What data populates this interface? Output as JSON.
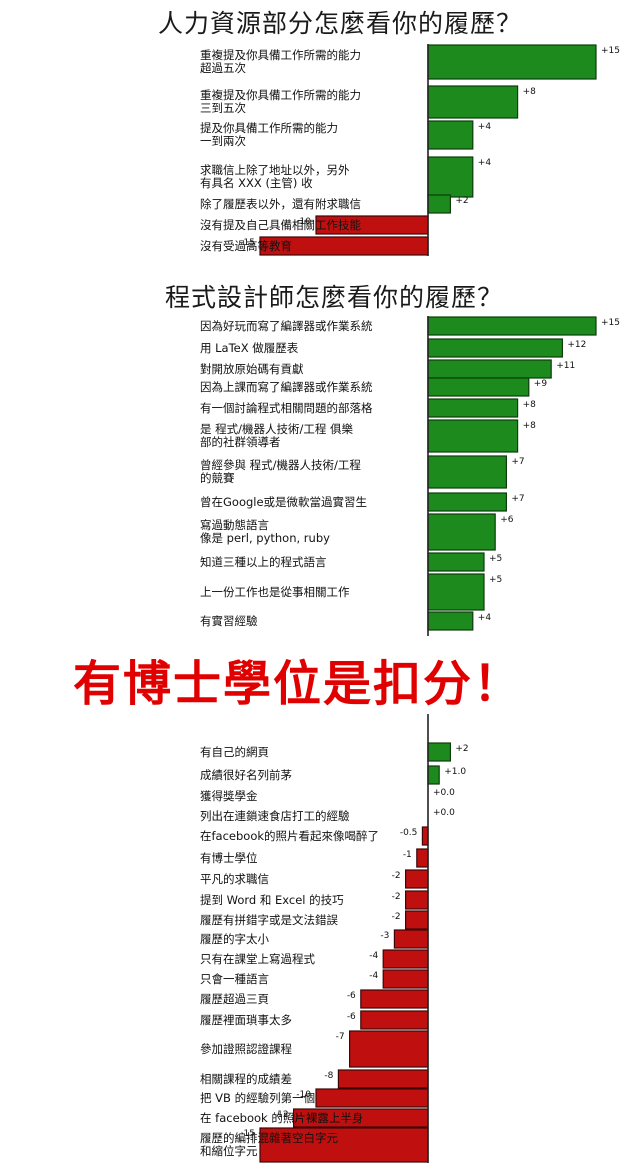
{
  "overlay_text": "有博士學位是扣分！",
  "colors": {
    "positive": "#1c8a1c",
    "negative": "#c00f0f",
    "overlay": "#e00000"
  },
  "chart_data": [
    {
      "type": "bar",
      "orientation": "horizontal",
      "title": "人力資源部分怎麼看你的履歷？",
      "items": [
        {
          "label": [
            "重複提及你具備工作所需的能力",
            "超過五次"
          ],
          "value": 15,
          "value_label": "+15"
        },
        {
          "label": [
            "重複提及你具備工作所需的能力",
            "三到五次"
          ],
          "value": 8,
          "value_label": "+8"
        },
        {
          "label": [
            "提及你具備工作所需的能力",
            "一到兩次"
          ],
          "value": 4,
          "value_label": "+4"
        },
        {
          "label": [
            "求職信上除了地址以外，另外",
            "有具名 XXX (主管) 收"
          ],
          "value": 4,
          "value_label": "+4"
        },
        {
          "label": [
            "除了履歷表以外，還有附求職信"
          ],
          "value": 2,
          "value_label": "+2"
        },
        {
          "label": [
            "沒有提及自己具備相關工作技能"
          ],
          "value": -10,
          "value_label": "-10"
        },
        {
          "label": [
            "沒有受過高等教育"
          ],
          "value": -15,
          "value_label": "-15"
        }
      ]
    },
    {
      "type": "bar",
      "orientation": "horizontal",
      "title": "程式設計師怎麼看你的履歷？",
      "items": [
        {
          "label": [
            "因為好玩而寫了編譯器或作業系統"
          ],
          "value": 15,
          "value_label": "+15"
        },
        {
          "label": [
            "用 LaTeX 做履歷表"
          ],
          "value": 12,
          "value_label": "+12"
        },
        {
          "label": [
            "對開放原始碼有貢獻"
          ],
          "value": 11,
          "value_label": "+11"
        },
        {
          "label": [
            "因為上課而寫了編譯器或作業系統"
          ],
          "value": 9,
          "value_label": "+9"
        },
        {
          "label": [
            "有一個討論程式相關問題的部落格"
          ],
          "value": 8,
          "value_label": "+8"
        },
        {
          "label": [
            "是 程式/機器人技術/工程 俱樂",
            "部的社群領導者"
          ],
          "value": 8,
          "value_label": "+8"
        },
        {
          "label": [
            "曾經參與 程式/機器人技術/工程",
            "的競賽"
          ],
          "value": 7,
          "value_label": "+7"
        },
        {
          "label": [
            "曾在Google或是微軟當過實習生"
          ],
          "value": 7,
          "value_label": "+7"
        },
        {
          "label": [
            "寫過動態語言",
            "像是 perl, python, ruby"
          ],
          "value": 6,
          "value_label": "+6"
        },
        {
          "label": [
            "知道三種以上的程式語言"
          ],
          "value": 5,
          "value_label": "+5"
        },
        {
          "label": [
            "上一份工作也是從事相關工作"
          ],
          "value": 5,
          "value_label": "+5"
        },
        {
          "label": [
            "有實習經驗"
          ],
          "value": 4,
          "value_label": "+4"
        },
        {
          "label": [
            "有自己的網頁"
          ],
          "value": 2,
          "value_label": "+2"
        },
        {
          "label": [
            "成績很好名列前茅"
          ],
          "value": 1.0,
          "value_label": "+1.0"
        },
        {
          "label": [
            "獲得獎學金"
          ],
          "value": 0.0,
          "value_label": "+0.0"
        },
        {
          "label": [
            "列出在連鎖速食店打工的經驗"
          ],
          "value": 0.0,
          "value_label": "+0.0"
        },
        {
          "label": [
            "在facebook的照片看起來像喝醉了"
          ],
          "value": -0.5,
          "value_label": "-0.5"
        },
        {
          "label": [
            "有博士學位"
          ],
          "value": -1,
          "value_label": "-1"
        },
        {
          "label": [
            "平凡的求職信"
          ],
          "value": -2,
          "value_label": "-2"
        },
        {
          "label": [
            "提到 Word 和 Excel 的技巧"
          ],
          "value": -2,
          "value_label": "-2"
        },
        {
          "label": [
            "履歷有拼錯字或是文法錯誤"
          ],
          "value": -2,
          "value_label": "-2"
        },
        {
          "label": [
            "履歷的字太小"
          ],
          "value": -3,
          "value_label": "-3"
        },
        {
          "label": [
            "只有在課堂上寫過程式"
          ],
          "value": -4,
          "value_label": "-4"
        },
        {
          "label": [
            "只會一種語言"
          ],
          "value": -4,
          "value_label": "-4"
        },
        {
          "label": [
            "履歷超過三頁"
          ],
          "value": -6,
          "value_label": "-6"
        },
        {
          "label": [
            "履歷裡面瑣事太多"
          ],
          "value": -6,
          "value_label": "-6"
        },
        {
          "label": [
            "參加證照認證課程"
          ],
          "value": -7,
          "value_label": "-7"
        },
        {
          "label": [
            "相關課程的成績差"
          ],
          "value": -8,
          "value_label": "-8"
        },
        {
          "label": [
            "把 VB 的經驗列第一個"
          ],
          "value": -10,
          "value_label": "-10"
        },
        {
          "label": [
            "在 facebook 的照片裸露上半身"
          ],
          "value": -12,
          "value_label": "-12"
        },
        {
          "label": [
            "履歷的編排混雜著空白字元",
            "和縮位字元"
          ],
          "value": -15,
          "value_label": "-15"
        }
      ]
    }
  ]
}
